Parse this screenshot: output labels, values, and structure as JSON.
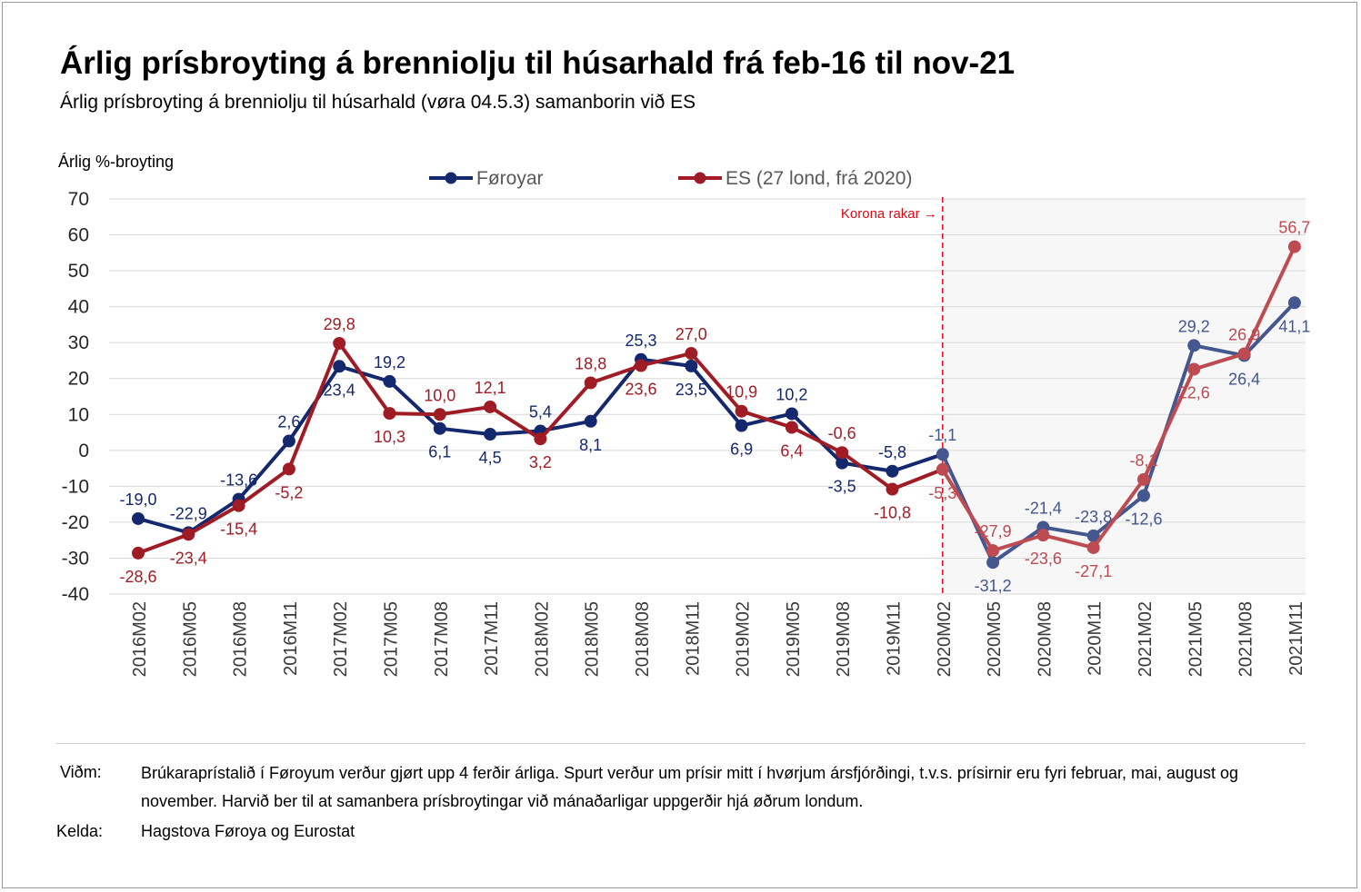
{
  "title": "Árlig prísbroyting á brenniolju til húsarhald frá feb-16 til nov-21",
  "subtitle": "Árlig prísbroyting á brenniolju til húsarhald (vøra 04.5.3) samanborin við ES",
  "notes": {
    "note_label": "Viðm:",
    "note_text": "Brúkaraprístalið í Føroyum verður gjørt upp 4 ferðir árliga. Spurt verður um prísir mitt í hvørjum ársfjórðingi, t.v.s. prísirnir eru fyri februar, mai, august og november. Harvið ber til at samanbera prísbroytingar við mánaðarligar uppgerðir hjá øðrum londum.",
    "source_label": "Kelda:",
    "source_text": "Hagstova Føroya og Eurostat"
  },
  "chart_data": {
    "type": "line",
    "ylabel": "Árlig %-broyting",
    "xlabel": "",
    "ylim": [
      -40,
      70
    ],
    "yticks": [
      -40,
      -30,
      -20,
      -10,
      0,
      10,
      20,
      30,
      40,
      50,
      60,
      70
    ],
    "grid": true,
    "legend_position": "top",
    "categories": [
      "2016M02",
      "2016M05",
      "2016M08",
      "2016M11",
      "2017M02",
      "2017M05",
      "2017M08",
      "2017M11",
      "2018M02",
      "2018M05",
      "2018M08",
      "2018M11",
      "2019M02",
      "2019M05",
      "2019M08",
      "2019M11",
      "2020M02",
      "2020M05",
      "2020M08",
      "2020M11",
      "2021M02",
      "2021M05",
      "2021M08",
      "2021M11"
    ],
    "series": [
      {
        "name": "Føroyar",
        "color": "#14286e",
        "color_after_marker": "#44578e",
        "values": [
          -19.0,
          -22.9,
          -13.6,
          2.6,
          23.4,
          19.2,
          6.1,
          4.5,
          5.4,
          8.1,
          25.3,
          23.5,
          6.9,
          10.2,
          -3.5,
          -5.8,
          -1.1,
          -31.2,
          -21.4,
          -23.8,
          -12.6,
          29.2,
          26.4,
          41.1
        ],
        "labels": [
          "-19,0",
          "-22,9",
          "-13,6",
          "2,6",
          "23,4",
          "19,2",
          "6,1",
          "4,5",
          "5,4",
          "8,1",
          "25,3",
          "23,5",
          "6,9",
          "10,2",
          "-3,5",
          "-5,8",
          "-1,1",
          "-31,2",
          "-21,4",
          "-23,8",
          "-12,6",
          "29,2",
          "26,4",
          "41,1"
        ]
      },
      {
        "name": "ES (27 lond, frá 2020)",
        "color": "#a01c24",
        "color_after_marker": "#bd4b51",
        "values": [
          -28.6,
          -23.4,
          -15.4,
          -5.2,
          29.8,
          10.3,
          10.0,
          12.1,
          3.2,
          18.8,
          23.6,
          27.0,
          10.9,
          6.4,
          -0.6,
          -10.8,
          -5.3,
          -27.9,
          -23.6,
          -27.1,
          -8.1,
          22.6,
          26.9,
          56.7
        ],
        "labels": [
          "-28,6",
          "-23,4",
          "-15,4",
          "-5,2",
          "29,8",
          "10,3",
          "10,0",
          "12,1",
          "3,2",
          "18,8",
          "23,6",
          "27,0",
          "10,9",
          "6,4",
          "-0,6",
          "-10,8",
          "-5,3",
          "-27,9",
          "-23,6",
          "-27,1",
          "-8,1",
          "22,6",
          "26,9",
          "56,7"
        ]
      }
    ],
    "annotation": {
      "text": "Korona rakar →",
      "at_category": "2020M02",
      "color": "#e30613"
    },
    "shaded_from_category": "2020M02"
  }
}
